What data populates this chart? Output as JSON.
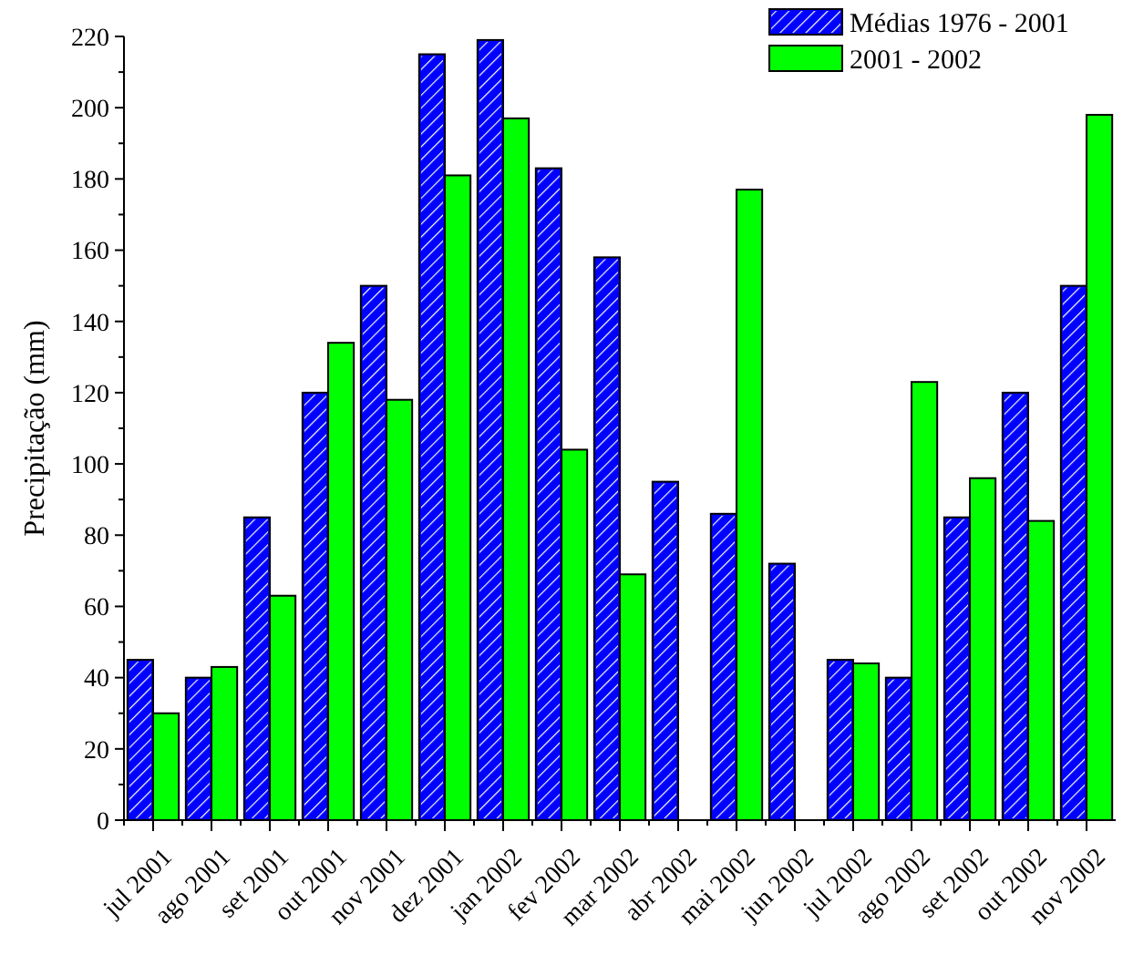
{
  "chart_data": {
    "type": "bar",
    "ylabel": "Precipitação (mm)",
    "categories": [
      "jul 2001",
      "ago 2001",
      "set 2001",
      "out 2001",
      "nov 2001",
      "dez 2001",
      "jan 2002",
      "fev 2002",
      "mar 2002",
      "abr 2002",
      "mai 2002",
      "jun 2002",
      "jul 2002",
      "ago 2002",
      "set 2002",
      "out 2002",
      "nov 2002"
    ],
    "series": [
      {
        "name": "Médias 1976 - 2001",
        "color": "#0000ff",
        "values": [
          45,
          40,
          85,
          120,
          150,
          215,
          219,
          183,
          158,
          95,
          86,
          72,
          45,
          40,
          85,
          120,
          150
        ]
      },
      {
        "name": "2001 - 2002",
        "color": "#00ff00",
        "values": [
          30,
          43,
          63,
          134,
          118,
          181,
          197,
          104,
          69,
          0,
          177,
          0,
          44,
          123,
          96,
          84,
          198
        ]
      }
    ],
    "ylim": [
      0,
      220
    ],
    "yticks": [
      0,
      20,
      40,
      60,
      80,
      100,
      120,
      140,
      160,
      180,
      200,
      220
    ],
    "grid": false,
    "legend": "top right"
  }
}
